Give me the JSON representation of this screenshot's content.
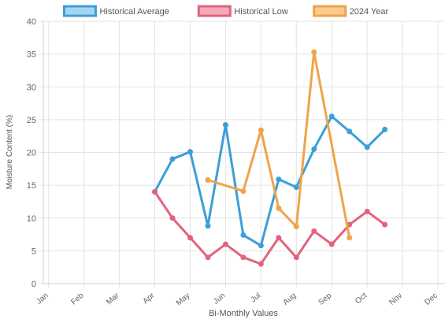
{
  "chart_data": {
    "type": "line",
    "title": "",
    "xlabel": "Bi-Monthly Values",
    "ylabel": "Moisture Content (%)",
    "ylim": [
      0,
      40
    ],
    "yticks": [
      0,
      5,
      10,
      15,
      20,
      25,
      30,
      35,
      40
    ],
    "categories": [
      "Jan",
      "Feb",
      "Mar",
      "Apr",
      "May",
      "Jun",
      "Jul",
      "Aug",
      "Sep",
      "Oct",
      "Nov",
      "Dec"
    ],
    "x_unit": "month index (Jan = 0), bi-monthly points",
    "grid": true,
    "legend_position": "top",
    "series": [
      {
        "name": "Historical Average",
        "color": "#3b9fd8",
        "fill": "#a9d4f0",
        "points": [
          [
            3,
            14
          ],
          [
            3.5,
            19
          ],
          [
            4,
            20.1
          ],
          [
            4.5,
            8.8
          ],
          [
            5,
            24.2
          ],
          [
            5.5,
            7.4
          ],
          [
            6,
            5.8
          ],
          [
            6.5,
            15.9
          ],
          [
            7,
            14.7
          ],
          [
            7.5,
            20.5
          ],
          [
            8,
            25.5
          ],
          [
            8.5,
            23.2
          ],
          [
            9,
            20.8
          ],
          [
            9.5,
            23.5
          ]
        ]
      },
      {
        "name": "Historical Low",
        "color": "#e2627f",
        "fill": "#f4a9bb",
        "points": [
          [
            3,
            14
          ],
          [
            3.5,
            10
          ],
          [
            4,
            7
          ],
          [
            4.5,
            4
          ],
          [
            5,
            6
          ],
          [
            5.5,
            4
          ],
          [
            6,
            3
          ],
          [
            6.5,
            7
          ],
          [
            7,
            4
          ],
          [
            7.5,
            8
          ],
          [
            8,
            6
          ],
          [
            8.5,
            9
          ],
          [
            9,
            11
          ],
          [
            9.5,
            9
          ]
        ]
      },
      {
        "name": "2024 Year",
        "color": "#f0a448",
        "fill": "#f8cb8f",
        "points": [
          [
            4.5,
            15.8
          ],
          [
            5.5,
            14.1
          ],
          [
            6,
            23.4
          ],
          [
            6.5,
            11.5
          ],
          [
            7,
            8.7
          ],
          [
            7.5,
            35.3
          ],
          [
            8.5,
            7
          ]
        ]
      }
    ]
  }
}
